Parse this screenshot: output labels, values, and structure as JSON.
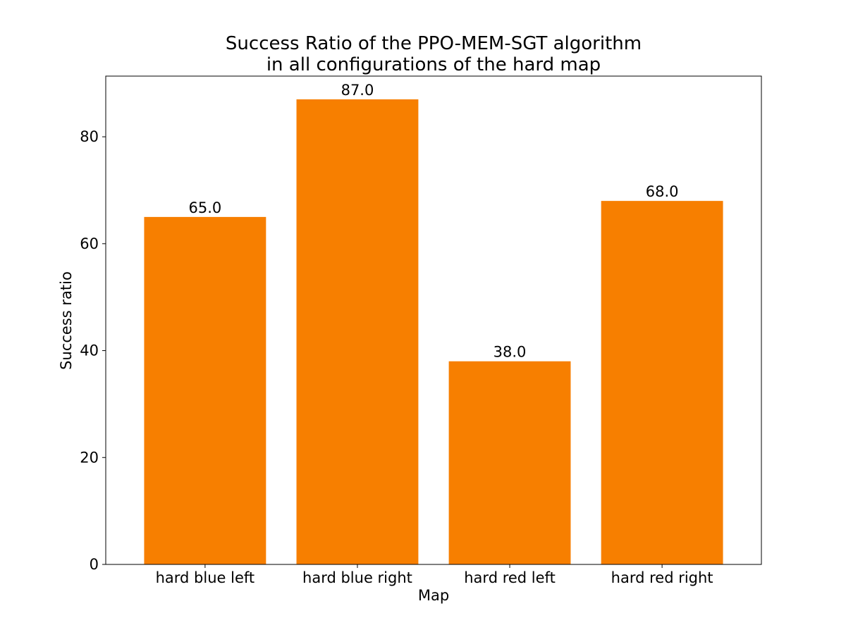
{
  "chart_data": {
    "type": "bar",
    "title_line1": "Success Ratio of the PPO-MEM-SGT algorithm",
    "title_line2": "in all configurations of the hard map",
    "xlabel": "Map",
    "ylabel": "Success ratio",
    "categories": [
      "hard blue left",
      "hard blue right",
      "hard red left",
      "hard red right"
    ],
    "values": [
      65.0,
      87.0,
      38.0,
      68.0
    ],
    "value_labels": [
      "65.0",
      "87.0",
      "38.0",
      "68.0"
    ],
    "ylim": [
      0,
      91.35
    ],
    "yticks": [
      0,
      20,
      40,
      60,
      80
    ],
    "bar_color": "#f77f00",
    "grid": false,
    "legend": "none"
  }
}
